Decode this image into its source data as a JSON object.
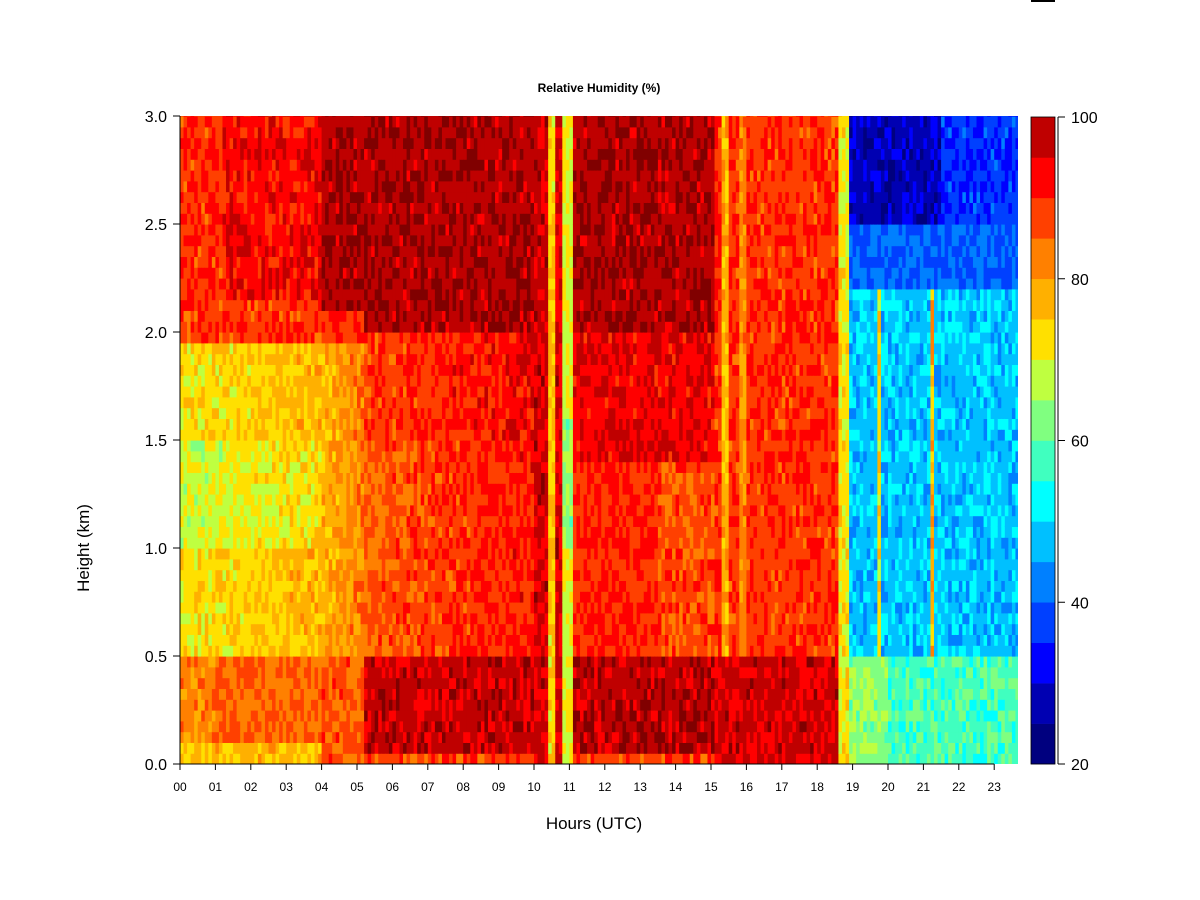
{
  "chart_data": {
    "type": "heatmap",
    "title": "Relative Humidity (%)",
    "xlabel": "Hours (UTC)",
    "ylabel": "Height (km)",
    "xlim": [
      0,
      24
    ],
    "ylim": [
      0.0,
      3.0
    ],
    "x_ticks": [
      "00",
      "01",
      "02",
      "03",
      "04",
      "05",
      "06",
      "07",
      "08",
      "09",
      "10",
      "11",
      "12",
      "13",
      "14",
      "15",
      "16",
      "17",
      "18",
      "19",
      "20",
      "21",
      "22",
      "23"
    ],
    "y_ticks": [
      "0.0",
      "0.5",
      "1.0",
      "1.5",
      "2.0",
      "2.5",
      "3.0"
    ],
    "colorbar": {
      "range": [
        20,
        100
      ],
      "step": 5,
      "tick_labels": [
        "20",
        "40",
        "60",
        "80",
        "100"
      ],
      "colors": [
        "#00007f",
        "#0000b2",
        "#0000ff",
        "#0040ff",
        "#0080ff",
        "#00c0ff",
        "#00ffff",
        "#40ffbf",
        "#80ff80",
        "#bfff40",
        "#ffe000",
        "#ffb000",
        "#ff8000",
        "#ff4000",
        "#ff0000",
        "#bf0000",
        "#800000"
      ]
    },
    "grid": false,
    "summary_regions": [
      {
        "hours": [
          0,
          4
        ],
        "heights_km": [
          2.1,
          3.0
        ],
        "rh": 95
      },
      {
        "hours": [
          0,
          4
        ],
        "heights_km": [
          0.5,
          2.0
        ],
        "rh": 72
      },
      {
        "hours": [
          0,
          5
        ],
        "heights_km": [
          0.0,
          0.4
        ],
        "rh": 85
      },
      {
        "hours": [
          4,
          10
        ],
        "heights_km": [
          2.0,
          3.0
        ],
        "rh": 100
      },
      {
        "hours": [
          5,
          10
        ],
        "heights_km": [
          0.5,
          2.0
        ],
        "rh": 87
      },
      {
        "hours": [
          6,
          10
        ],
        "heights_km": [
          0.05,
          0.5
        ],
        "rh": 99
      },
      {
        "hours": [
          10.4,
          10.55
        ],
        "heights_km": [
          0.0,
          3.0
        ],
        "rh": 74
      },
      {
        "hours": [
          10.8,
          11.05
        ],
        "heights_km": [
          0.0,
          3.0
        ],
        "rh": 68
      },
      {
        "hours": [
          11,
          15
        ],
        "heights_km": [
          2.0,
          3.0
        ],
        "rh": 100
      },
      {
        "hours": [
          11,
          15
        ],
        "heights_km": [
          0.5,
          2.0
        ],
        "rh": 92
      },
      {
        "hours": [
          15,
          18.5
        ],
        "heights_km": [
          0.5,
          3.0
        ],
        "rh": 90
      },
      {
        "hours": [
          18.8,
          24
        ],
        "heights_km": [
          2.5,
          3.0
        ],
        "rh": 30
      },
      {
        "hours": [
          18.8,
          24
        ],
        "heights_km": [
          0.5,
          2.2
        ],
        "rh": 50
      },
      {
        "hours": [
          18.8,
          20
        ],
        "heights_km": [
          0.0,
          0.5
        ],
        "rh": 65
      }
    ]
  }
}
